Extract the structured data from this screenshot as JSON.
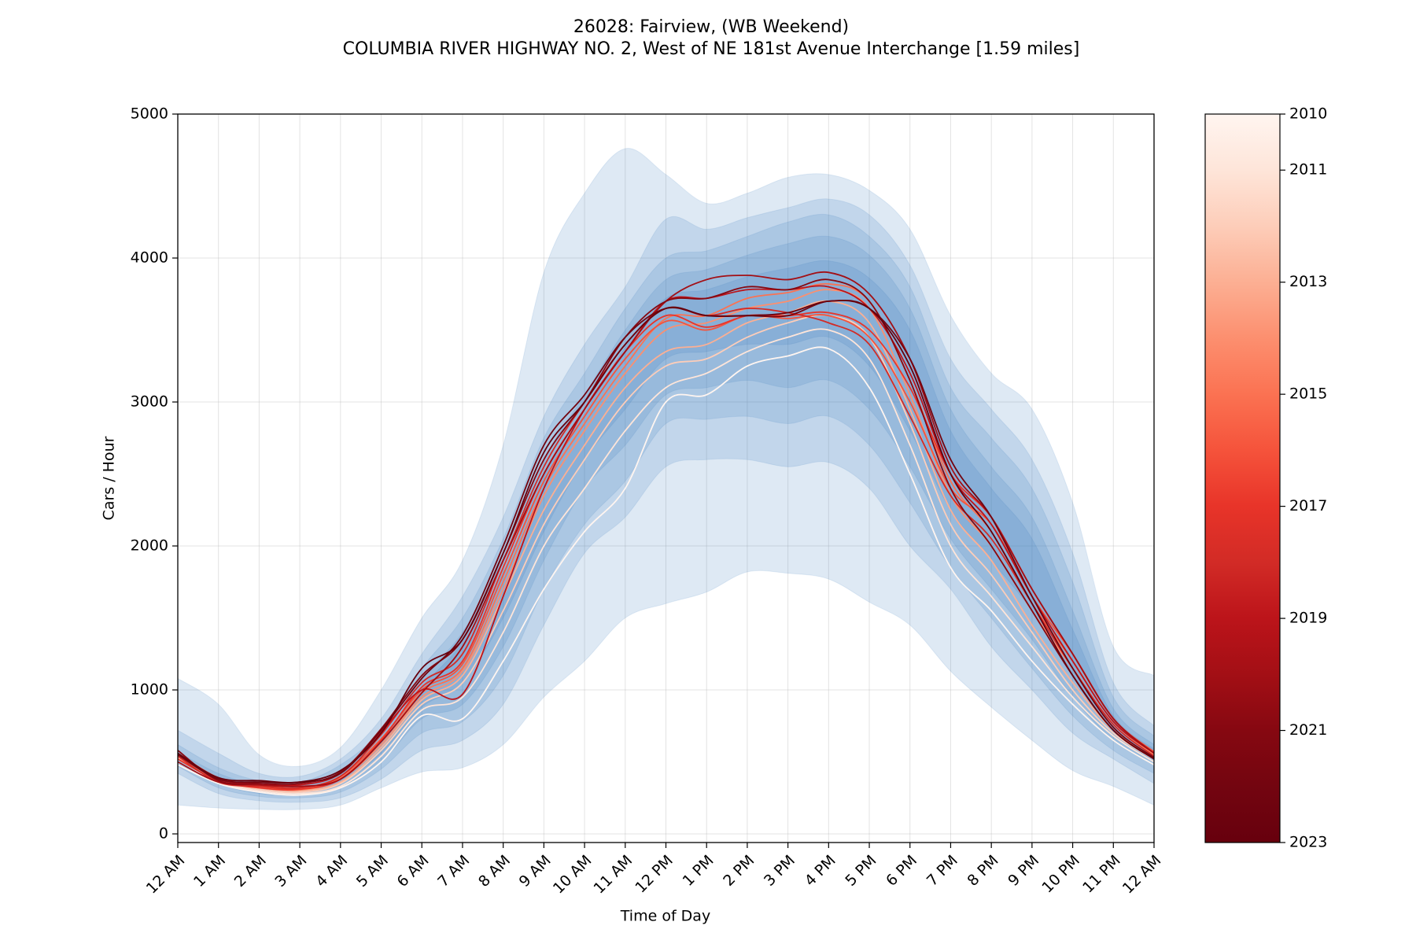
{
  "chart_data": {
    "type": "line",
    "title": "26028: Fairview, (WB Weekend)",
    "subtitle": "COLUMBIA RIVER HIGHWAY NO. 2, West of NE 181st Avenue Interchange [1.59 miles]",
    "x_label": "Time of Day",
    "y_label": "Cars / Hour",
    "x": [
      0,
      1,
      2,
      3,
      4,
      5,
      6,
      7,
      8,
      9,
      10,
      11,
      12,
      13,
      14,
      15,
      16,
      17,
      18,
      19,
      20,
      21,
      22,
      23,
      24
    ],
    "xlim": [
      0,
      24
    ],
    "xticks": [
      {
        "value": 0,
        "label": "12 AM"
      },
      {
        "value": 1,
        "label": "1 AM"
      },
      {
        "value": 2,
        "label": "2 AM"
      },
      {
        "value": 3,
        "label": "3 AM"
      },
      {
        "value": 4,
        "label": "4 AM"
      },
      {
        "value": 5,
        "label": "5 AM"
      },
      {
        "value": 6,
        "label": "6 AM"
      },
      {
        "value": 7,
        "label": "7 AM"
      },
      {
        "value": 8,
        "label": "8 AM"
      },
      {
        "value": 9,
        "label": "9 AM"
      },
      {
        "value": 10,
        "label": "10 AM"
      },
      {
        "value": 11,
        "label": "11 AM"
      },
      {
        "value": 12,
        "label": "12 PM"
      },
      {
        "value": 13,
        "label": "1 PM"
      },
      {
        "value": 14,
        "label": "2 PM"
      },
      {
        "value": 15,
        "label": "3 PM"
      },
      {
        "value": 16,
        "label": "4 PM"
      },
      {
        "value": 17,
        "label": "5 PM"
      },
      {
        "value": 18,
        "label": "6 PM"
      },
      {
        "value": 19,
        "label": "7 PM"
      },
      {
        "value": 20,
        "label": "8 PM"
      },
      {
        "value": 21,
        "label": "9 PM"
      },
      {
        "value": 22,
        "label": "10 PM"
      },
      {
        "value": 23,
        "label": "11 PM"
      },
      {
        "value": 24,
        "label": "12 AM"
      }
    ],
    "ylim": [
      -60,
      5000
    ],
    "yticks": [
      0,
      1000,
      2000,
      3000,
      4000,
      5000
    ],
    "grid": true,
    "band_color": "#3a7dbb",
    "band_opacity": 0.17,
    "bands": [
      {
        "upper": [
          1080,
          900,
          550,
          470,
          600,
          1000,
          1500,
          1900,
          2700,
          3900,
          4450,
          4760,
          4580,
          4380,
          4450,
          4560,
          4580,
          4470,
          4200,
          3600,
          3200,
          2950,
          2300,
          1300,
          1100
        ],
        "lower": [
          200,
          180,
          170,
          170,
          200,
          320,
          430,
          460,
          620,
          950,
          1200,
          1500,
          1600,
          1680,
          1820,
          1810,
          1770,
          1610,
          1450,
          1130,
          880,
          650,
          440,
          330,
          200
        ]
      },
      {
        "upper": [
          720,
          560,
          420,
          400,
          520,
          800,
          1250,
          1650,
          2200,
          2900,
          3400,
          3800,
          4270,
          4200,
          4280,
          4350,
          4410,
          4300,
          3950,
          3300,
          2950,
          2600,
          1950,
          1050,
          750
        ],
        "lower": [
          420,
          280,
          230,
          220,
          250,
          380,
          580,
          650,
          900,
          1450,
          1950,
          2200,
          2550,
          2600,
          2600,
          2550,
          2580,
          2400,
          2000,
          1700,
          1300,
          1000,
          700,
          520,
          350
        ]
      },
      {
        "upper": [
          620,
          460,
          370,
          360,
          480,
          720,
          1150,
          1500,
          2050,
          2750,
          3200,
          3650,
          4000,
          4050,
          4150,
          4250,
          4300,
          4150,
          3800,
          3100,
          2750,
          2400,
          1750,
          950,
          680
        ],
        "lower": [
          470,
          320,
          260,
          250,
          290,
          450,
          700,
          780,
          1100,
          1700,
          2150,
          2450,
          2850,
          2880,
          2900,
          2850,
          2900,
          2700,
          2300,
          1850,
          1500,
          1150,
          820,
          580,
          420
        ]
      },
      {
        "upper": [
          570,
          420,
          340,
          330,
          440,
          680,
          1080,
          1400,
          1920,
          2600,
          3050,
          3500,
          3850,
          3920,
          4020,
          4100,
          4150,
          4020,
          3650,
          2950,
          2550,
          2200,
          1550,
          870,
          620
        ],
        "lower": [
          500,
          350,
          280,
          270,
          320,
          500,
          800,
          900,
          1300,
          1900,
          2400,
          2700,
          3050,
          3100,
          3150,
          3100,
          3150,
          2950,
          2550,
          2050,
          1700,
          1350,
          950,
          650,
          480
        ]
      },
      {
        "upper": [
          545,
          395,
          320,
          310,
          420,
          650,
          1020,
          1330,
          1820,
          2480,
          2920,
          3380,
          3720,
          3780,
          3870,
          3930,
          3980,
          3860,
          3500,
          2800,
          2400,
          2050,
          1420,
          820,
          590
        ],
        "lower": [
          515,
          370,
          295,
          285,
          350,
          560,
          880,
          1050,
          1500,
          2100,
          2600,
          2950,
          3300,
          3350,
          3400,
          3400,
          3450,
          3250,
          2800,
          2250,
          1900,
          1550,
          1100,
          720,
          520
        ]
      }
    ],
    "series": [
      {
        "color": "#fff5f0",
        "values": [
          480,
          350,
          290,
          270,
          320,
          500,
          820,
          800,
          1200,
          1700,
          2100,
          2400,
          3000,
          3050,
          3250,
          3320,
          3370,
          3100,
          2500,
          1850,
          1550,
          1200,
          900,
          650,
          480
        ]
      },
      {
        "color": "#fee5d9",
        "values": [
          500,
          360,
          300,
          280,
          330,
          540,
          860,
          950,
          1400,
          2000,
          2400,
          2800,
          3100,
          3200,
          3350,
          3450,
          3500,
          3300,
          2700,
          2000,
          1650,
          1300,
          950,
          680,
          500
        ]
      },
      {
        "color": "#fdcdb9",
        "values": [
          520,
          370,
          310,
          290,
          350,
          580,
          900,
          1050,
          1550,
          2150,
          2600,
          3000,
          3250,
          3300,
          3450,
          3550,
          3600,
          3450,
          2850,
          2150,
          1800,
          1400,
          1000,
          700,
          520
        ]
      },
      {
        "color": "#fcaf93",
        "values": [
          530,
          375,
          320,
          300,
          360,
          600,
          930,
          1100,
          1650,
          2250,
          2700,
          3100,
          3350,
          3400,
          3550,
          3620,
          3700,
          3550,
          2950,
          2250,
          1900,
          1450,
          1050,
          720,
          530
        ]
      },
      {
        "color": "#fc8f6f",
        "values": [
          540,
          380,
          330,
          305,
          380,
          620,
          950,
          1130,
          1700,
          2350,
          2800,
          3200,
          3500,
          3550,
          3650,
          3700,
          3780,
          3650,
          3050,
          2350,
          2000,
          1550,
          1150,
          760,
          550
        ]
      },
      {
        "color": "#fb7252",
        "values": [
          550,
          385,
          335,
          310,
          390,
          640,
          980,
          1150,
          1750,
          2400,
          2850,
          3250,
          3580,
          3600,
          3720,
          3760,
          3820,
          3700,
          3150,
          2450,
          2100,
          1600,
          1200,
          780,
          560
        ]
      },
      {
        "color": "#f5533b",
        "values": [
          560,
          390,
          340,
          320,
          400,
          660,
          1000,
          1180,
          1800,
          2450,
          2900,
          3300,
          3560,
          3500,
          3600,
          3580,
          3600,
          3450,
          3000,
          2400,
          2150,
          1650,
          1250,
          800,
          570
        ]
      },
      {
        "color": "#e83429",
        "values": [
          520,
          370,
          320,
          310,
          380,
          650,
          1020,
          1200,
          1850,
          2500,
          2950,
          3350,
          3600,
          3520,
          3600,
          3600,
          3620,
          3500,
          3100,
          2500,
          2200,
          1700,
          1250,
          800,
          560
        ]
      },
      {
        "color": "#d22b26",
        "values": [
          540,
          360,
          330,
          320,
          400,
          690,
          1050,
          1250,
          1900,
          2550,
          3000,
          3400,
          3650,
          3600,
          3650,
          3620,
          3550,
          3400,
          2900,
          2350,
          2050,
          1600,
          1150,
          760,
          540
        ]
      },
      {
        "color": "#bc141a",
        "values": [
          560,
          380,
          350,
          340,
          420,
          710,
          1000,
          970,
          1650,
          2400,
          2950,
          3350,
          3700,
          3720,
          3780,
          3780,
          3800,
          3650,
          3200,
          2500,
          2150,
          1650,
          1200,
          780,
          560
        ]
      },
      {
        "color": "#a30f15",
        "values": [
          500,
          360,
          340,
          330,
          380,
          640,
          980,
          1300,
          1900,
          2500,
          2950,
          3350,
          3700,
          3850,
          3880,
          3850,
          3900,
          3750,
          3300,
          2550,
          2200,
          1700,
          1250,
          800,
          560
        ]
      },
      {
        "color": "#860811",
        "values": [
          580,
          370,
          350,
          350,
          430,
          730,
          1100,
          1350,
          1950,
          2600,
          3000,
          3450,
          3700,
          3720,
          3800,
          3780,
          3850,
          3700,
          3150,
          2400,
          2000,
          1550,
          1100,
          720,
          520
        ]
      },
      {
        "color": "#730510",
        "values": [
          550,
          380,
          360,
          360,
          420,
          720,
          1080,
          1380,
          2000,
          2700,
          3050,
          3450,
          3650,
          3600,
          3600,
          3600,
          3700,
          3650,
          3300,
          2600,
          2200,
          1650,
          1150,
          740,
          530
        ]
      },
      {
        "color": "#67000d",
        "values": [
          560,
          390,
          370,
          360,
          440,
          700,
          1150,
          1350,
          1950,
          2650,
          3000,
          3400,
          3650,
          3600,
          3600,
          3620,
          3700,
          3650,
          3250,
          2500,
          2100,
          1600,
          1100,
          720,
          520
        ]
      }
    ],
    "colorbar": {
      "lim": [
        2010,
        2023
      ],
      "ticks": [
        2010,
        2011,
        2013,
        2015,
        2017,
        2019,
        2021,
        2023
      ],
      "colors": [
        "#fff5f0",
        "#fee5d9",
        "#fdcdb9",
        "#fcaf93",
        "#fc8f6f",
        "#fb7252",
        "#f5533b",
        "#e83429",
        "#d22b26",
        "#bc141a",
        "#a30f15",
        "#860811",
        "#730510",
        "#67000d"
      ]
    }
  }
}
